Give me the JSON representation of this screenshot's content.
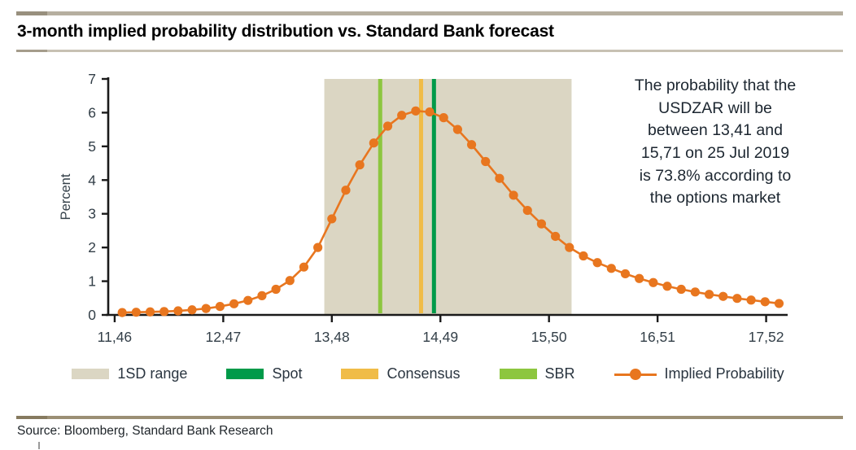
{
  "header": {
    "title": "3-month implied probability distribution vs. Standard Bank forecast"
  },
  "annotation": {
    "text": "The probability that the\nUSDZAR will be\nbetween 13,41 and\n15,71 on 25 Jul 2019\nis 73.8% according to\nthe options market"
  },
  "source": {
    "label": "Source: Bloomberg, Standard Bank Research"
  },
  "colors": {
    "orange": "#E8761F",
    "band_beige": "#DBD6C3",
    "spot_green": "#009A49",
    "consensus_amber": "#F0BC47",
    "sbr_green": "#8DC63F",
    "axis": "#1a1a1a",
    "tick_text": "#333F48"
  },
  "legend": [
    {
      "label": "1SD range",
      "type": "swatch",
      "color": "#DBD6C3"
    },
    {
      "label": "Spot",
      "type": "swatch",
      "color": "#009A49"
    },
    {
      "label": "Consensus",
      "type": "swatch",
      "color": "#F0BC47"
    },
    {
      "label": "SBR",
      "type": "swatch",
      "color": "#8DC63F"
    },
    {
      "label": "Implied Probability",
      "type": "line-marker",
      "color": "#E8761F"
    }
  ],
  "chart_data": {
    "type": "line",
    "title": "3-month implied probability distribution vs. Standard Bank forecast",
    "xlabel": "",
    "ylabel": "Percent",
    "x_domain": [
      11.4,
      17.72
    ],
    "ylim": [
      0,
      7
    ],
    "grid": false,
    "legend_position": "bottom",
    "x_ticks": {
      "values": [
        11.46,
        12.47,
        13.48,
        14.49,
        15.5,
        16.51,
        17.52
      ],
      "labels": [
        "11,46",
        "12,47",
        "13,48",
        "14,49",
        "15,50",
        "16,51",
        "17,52"
      ]
    },
    "y_ticks": [
      0,
      1,
      2,
      3,
      4,
      5,
      6,
      7
    ],
    "band": {
      "label": "1SD range",
      "from": 13.41,
      "to": 15.71,
      "color": "#DBD6C3"
    },
    "vlines": [
      {
        "label": "SBR",
        "x": 13.93,
        "color": "#8DC63F"
      },
      {
        "label": "Consensus",
        "x": 14.31,
        "color": "#F0BC47"
      },
      {
        "label": "Spot",
        "x": 14.43,
        "color": "#009A49"
      }
    ],
    "series": [
      {
        "name": "Implied Probability",
        "color": "#E8761F",
        "marker": "circle",
        "points": [
          [
            11.53,
            0.07
          ],
          [
            11.66,
            0.08
          ],
          [
            11.79,
            0.09
          ],
          [
            11.92,
            0.1
          ],
          [
            12.05,
            0.12
          ],
          [
            12.18,
            0.15
          ],
          [
            12.31,
            0.19
          ],
          [
            12.44,
            0.25
          ],
          [
            12.57,
            0.33
          ],
          [
            12.7,
            0.43
          ],
          [
            12.83,
            0.57
          ],
          [
            12.96,
            0.76
          ],
          [
            13.09,
            1.02
          ],
          [
            13.22,
            1.42
          ],
          [
            13.35,
            2.0
          ],
          [
            13.48,
            2.85
          ],
          [
            13.61,
            3.7
          ],
          [
            13.74,
            4.45
          ],
          [
            13.87,
            5.1
          ],
          [
            14.0,
            5.6
          ],
          [
            14.13,
            5.92
          ],
          [
            14.26,
            6.05
          ],
          [
            14.39,
            6.02
          ],
          [
            14.52,
            5.85
          ],
          [
            14.65,
            5.5
          ],
          [
            14.78,
            5.05
          ],
          [
            14.91,
            4.55
          ],
          [
            15.04,
            4.05
          ],
          [
            15.17,
            3.55
          ],
          [
            15.3,
            3.1
          ],
          [
            15.43,
            2.7
          ],
          [
            15.56,
            2.33
          ],
          [
            15.69,
            2.0
          ],
          [
            15.82,
            1.75
          ],
          [
            15.95,
            1.55
          ],
          [
            16.08,
            1.38
          ],
          [
            16.21,
            1.22
          ],
          [
            16.34,
            1.08
          ],
          [
            16.47,
            0.96
          ],
          [
            16.6,
            0.85
          ],
          [
            16.73,
            0.76
          ],
          [
            16.86,
            0.68
          ],
          [
            16.99,
            0.61
          ],
          [
            17.12,
            0.55
          ],
          [
            17.25,
            0.49
          ],
          [
            17.38,
            0.44
          ],
          [
            17.51,
            0.39
          ],
          [
            17.64,
            0.34
          ]
        ]
      }
    ]
  }
}
